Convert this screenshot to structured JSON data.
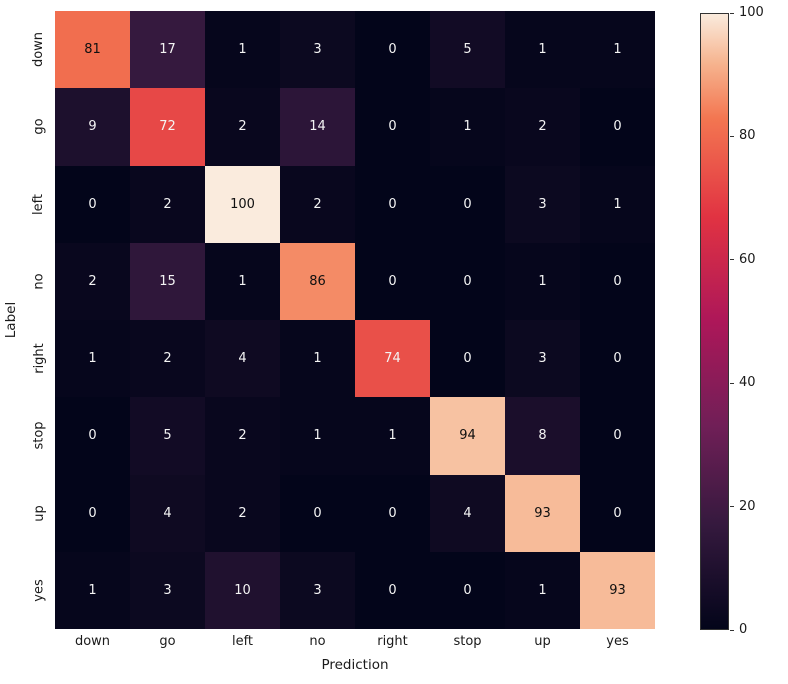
{
  "chart_data": {
    "type": "heatmap",
    "title": "",
    "xlabel": "Prediction",
    "ylabel": "Label",
    "categories": [
      "down",
      "go",
      "left",
      "no",
      "right",
      "stop",
      "up",
      "yes"
    ],
    "matrix": [
      [
        81,
        17,
        1,
        3,
        0,
        5,
        1,
        1
      ],
      [
        9,
        72,
        2,
        14,
        0,
        1,
        2,
        0
      ],
      [
        0,
        2,
        100,
        2,
        0,
        0,
        3,
        1
      ],
      [
        2,
        15,
        1,
        86,
        0,
        0,
        1,
        0
      ],
      [
        1,
        2,
        4,
        1,
        74,
        0,
        3,
        0
      ],
      [
        0,
        5,
        2,
        1,
        1,
        94,
        8,
        0
      ],
      [
        0,
        4,
        2,
        0,
        0,
        4,
        93,
        0
      ],
      [
        1,
        3,
        10,
        3,
        0,
        0,
        1,
        93
      ]
    ],
    "colorbar": {
      "min": 0,
      "max": 100,
      "ticks": [
        0,
        20,
        40,
        60,
        80,
        100
      ]
    },
    "colormap": "rocket",
    "colormap_stops": [
      [
        0.0,
        "#03051A"
      ],
      [
        0.17,
        "#35193E"
      ],
      [
        0.33,
        "#701F57"
      ],
      [
        0.5,
        "#AD1759"
      ],
      [
        0.67,
        "#E13342"
      ],
      [
        0.83,
        "#F37651"
      ],
      [
        0.92,
        "#F6B48F"
      ],
      [
        1.0,
        "#FAEBDD"
      ]
    ],
    "layout": {
      "grid": false,
      "legend_position": "none",
      "colorbar_position": "right"
    }
  }
}
